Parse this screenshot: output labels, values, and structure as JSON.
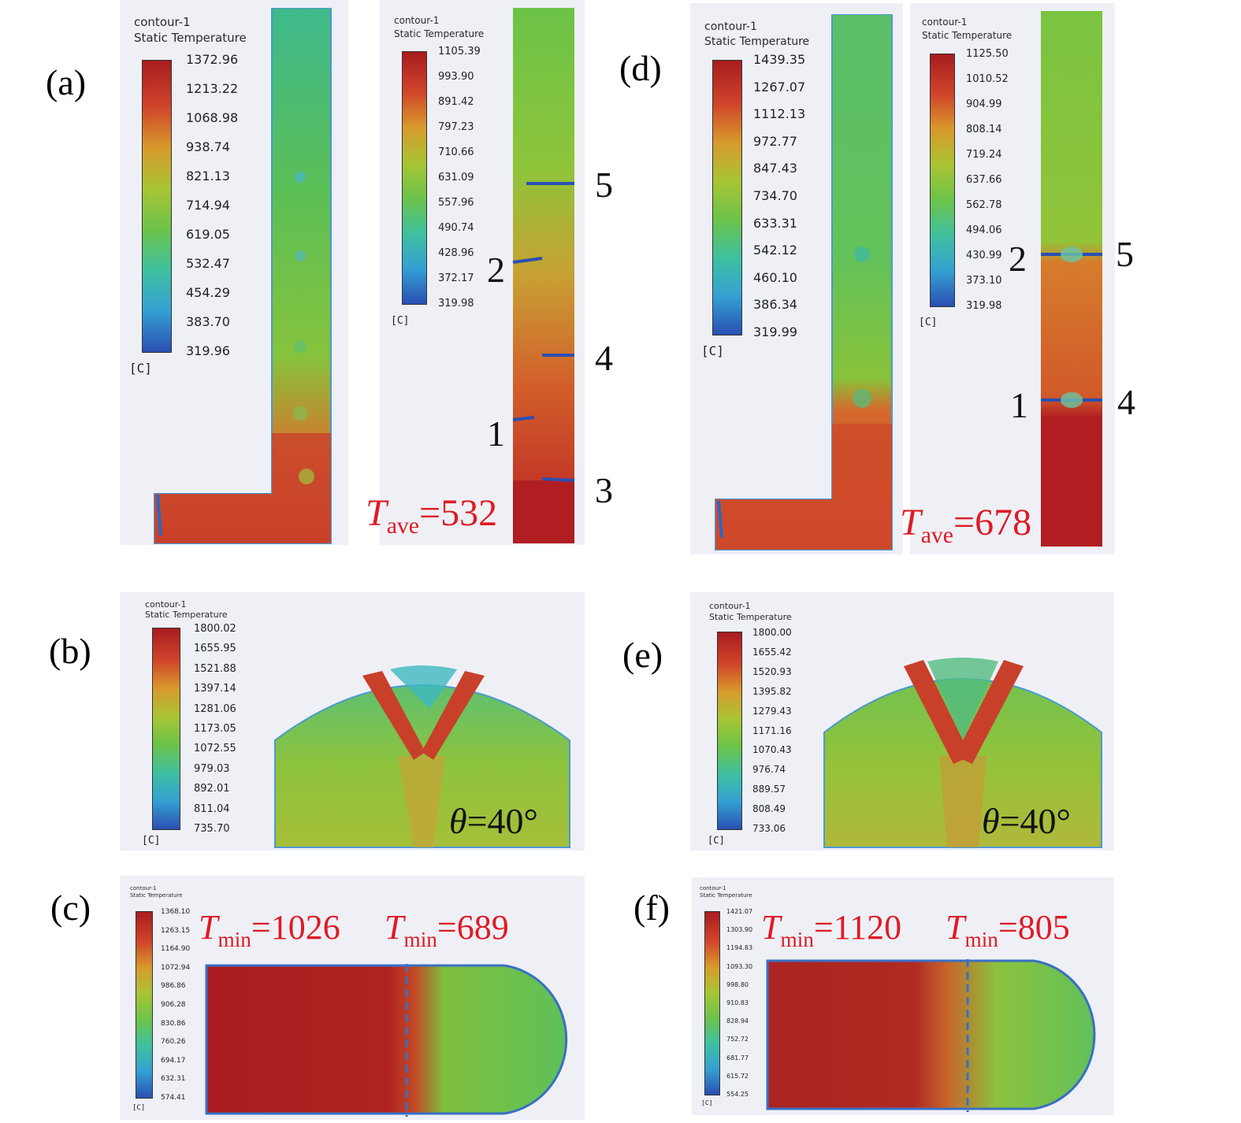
{
  "panels": {
    "a": {
      "label": "(a)"
    },
    "b": {
      "label": "(b)"
    },
    "c": {
      "label": "(c)"
    },
    "d": {
      "label": "(d)"
    },
    "e": {
      "label": "(e)"
    },
    "f": {
      "label": "(f)"
    }
  },
  "contour": {
    "name": "contour-1",
    "quantity": "Static Temperature",
    "unit": "[C]"
  },
  "colorbars": {
    "a1": [
      "1372.96",
      "1213.22",
      "1068.98",
      "938.74",
      "821.13",
      "714.94",
      "619.05",
      "532.47",
      "454.29",
      "383.70",
      "319.96"
    ],
    "a2": [
      "1105.39",
      "993.90",
      "891.42",
      "797.23",
      "710.66",
      "631.09",
      "557.96",
      "490.74",
      "428.96",
      "372.17",
      "319.98"
    ],
    "d1": [
      "1439.35",
      "1267.07",
      "1112.13",
      "972.77",
      "847.43",
      "734.70",
      "633.31",
      "542.12",
      "460.10",
      "386.34",
      "319.99"
    ],
    "d2": [
      "1125.50",
      "1010.52",
      "904.99",
      "808.14",
      "719.24",
      "637.66",
      "562.78",
      "494.06",
      "430.99",
      "373.10",
      "319.98"
    ],
    "b": [
      "1800.02",
      "1655.95",
      "1521.88",
      "1397.14",
      "1281.06",
      "1173.05",
      "1072.55",
      "979.03",
      "892.01",
      "811.04",
      "735.70"
    ],
    "e": [
      "1800.00",
      "1655.42",
      "1520.93",
      "1395.82",
      "1279.43",
      "1171.16",
      "1070.43",
      "976.74",
      "889.57",
      "808.49",
      "733.06"
    ],
    "c": [
      "1368.10",
      "1263.15",
      "1164.90",
      "1072.94",
      "986.86",
      "906.28",
      "830.86",
      "760.26",
      "694.17",
      "632.31",
      "574.41"
    ],
    "f": [
      "1421.07",
      "1303.90",
      "1194.83",
      "1093.30",
      "998.80",
      "910.83",
      "828.94",
      "752.72",
      "681.77",
      "615.72",
      "554.25"
    ]
  },
  "positions_a": [
    "5",
    "2",
    "4",
    "1",
    "3"
  ],
  "positions_d": [
    "2",
    "5",
    "1",
    "4"
  ],
  "annotations": {
    "tave_a": {
      "sym": "T",
      "sub": "ave",
      "val": "=532"
    },
    "tave_d": {
      "sym": "T",
      "sub": "ave",
      "val": "=678"
    },
    "theta_b": {
      "sym": "θ",
      "val": "=40°"
    },
    "theta_e": {
      "sym": "θ",
      "val": "=40°"
    },
    "tmin_c1": {
      "sym": "T",
      "sub": "min",
      "val": "=1026"
    },
    "tmin_c2": {
      "sym": "T",
      "sub": "min",
      "val": "=689"
    },
    "tmin_f1": {
      "sym": "T",
      "sub": "min",
      "val": "=1120"
    },
    "tmin_f2": {
      "sym": "T",
      "sub": "min",
      "val": "=805"
    }
  },
  "colors": {
    "hot": "#b01e22",
    "warm": "#d4502a",
    "mid": "#78c23c",
    "cool": "#3fc0a0",
    "cold": "#2a4fb3",
    "annotation": "#e01a24"
  }
}
